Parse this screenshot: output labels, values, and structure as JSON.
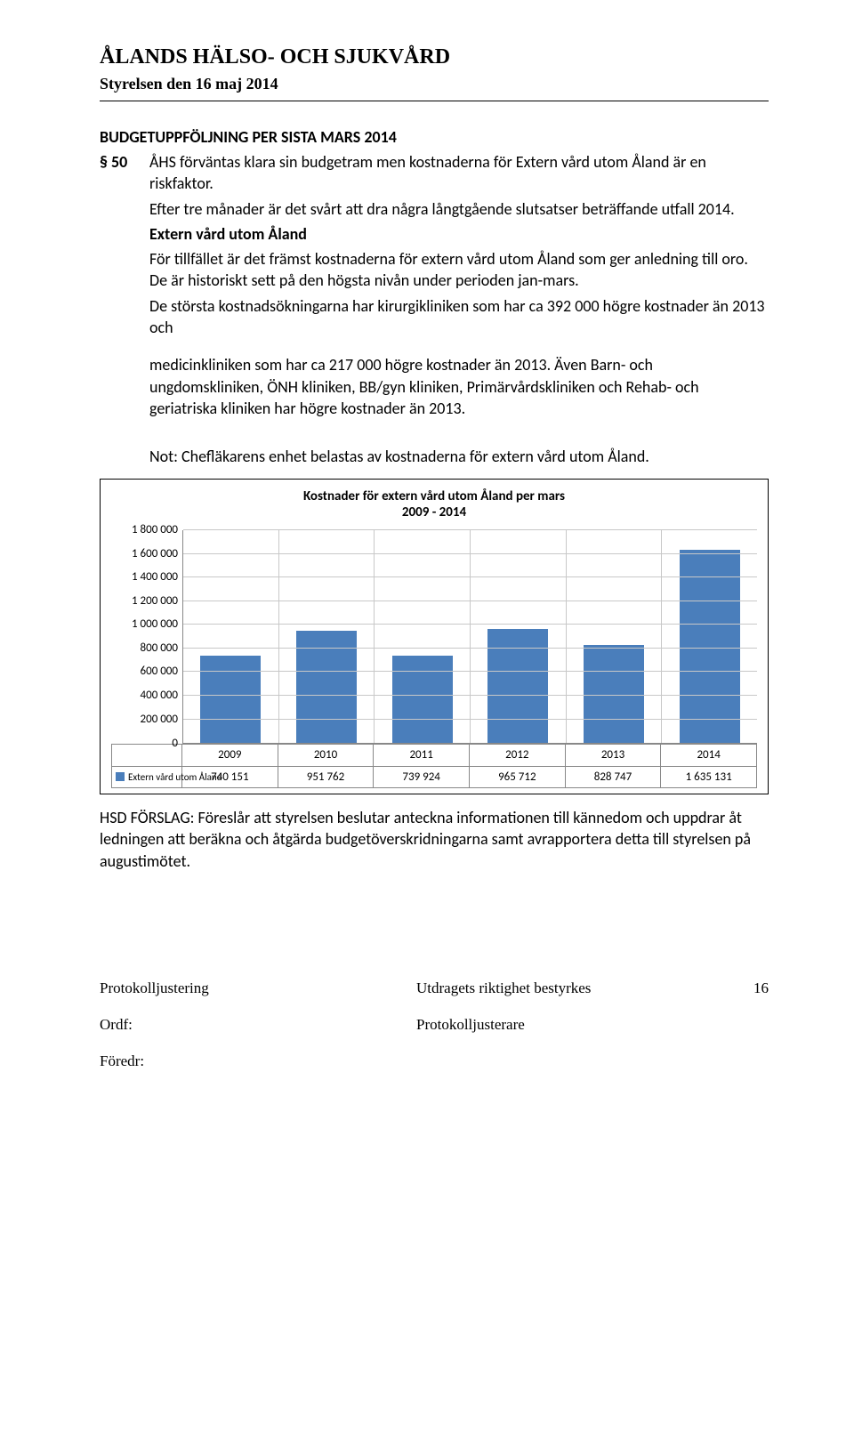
{
  "header": {
    "org": "ÅLANDS HÄLSO- OCH SJUKVÅRD",
    "meeting": "Styrelsen den 16 maj 2014"
  },
  "doc": {
    "section_title": "BUDGETUPPFÖLJNING PER SISTA MARS 2014",
    "paragraph_num": "§ 50",
    "p1": "ÅHS förväntas klara sin budgetram men kostnaderna för Extern vård utom Åland är en riskfaktor.",
    "p2": "Efter tre månader är det svårt att dra några långtgående slutsatser beträffande utfall 2014.",
    "sub1": "Extern vård utom Åland",
    "p3": "För tillfället är det främst kostnaderna för extern vård utom Åland som ger anledning till oro. De är historiskt sett på den högsta nivån under perioden jan-mars.",
    "p4": "De största kostnadsökningarna har kirurgikliniken som har ca 392 000 högre kostnader än 2013 och",
    "p5": "medicinkliniken som har ca 217 000 högre kostnader än 2013. Även Barn- och ungdomskliniken, ÖNH kliniken, BB/gyn kliniken, Primärvårdskliniken och Rehab- och geriatriska kliniken har högre kostnader än 2013.",
    "note": "Not: Chefläkarens enhet belastas av kostnaderna för extern vård utom Åland.",
    "proposal": "HSD FÖRSLAG: Föreslår att styrelsen beslutar anteckna informationen till kännedom och uppdrar åt ledningen att beräkna och åtgärda budgetöverskridningarna samt avrapportera detta till styrelsen på augustimötet."
  },
  "chart": {
    "title_l1": "Kostnader för extern vård utom Åland per mars",
    "title_l2": "2009 - 2014",
    "type": "bar",
    "categories": [
      "2009",
      "2010",
      "2011",
      "2012",
      "2013",
      "2014"
    ],
    "series_label": "Extern vård utom Åland",
    "values": [
      740151,
      951762,
      739924,
      965712,
      828747,
      1635131
    ],
    "value_labels": [
      "740 151",
      "951 762",
      "739 924",
      "965 712",
      "828 747",
      "1 635 131"
    ],
    "bar_color": "#4a7ebb",
    "grid_color": "#c8c8c8",
    "border_color": "#888888",
    "ylim": [
      0,
      1800000
    ],
    "ytick_step": 200000,
    "ytick_labels": [
      "0",
      "200 000",
      "400 000",
      "600 000",
      "800 000",
      "1 000 000",
      "1 200 000",
      "1 400 000",
      "1 600 000",
      "1 800 000"
    ],
    "legend_swatch_color": "#4a7ebb"
  },
  "footer": {
    "just": "Protokolljustering",
    "verify": "Utdragets riktighet bestyrkes",
    "page": "16",
    "ordf": "Ordf:",
    "justerare": "Protokolljusterare",
    "foredr": "Föredr:"
  }
}
